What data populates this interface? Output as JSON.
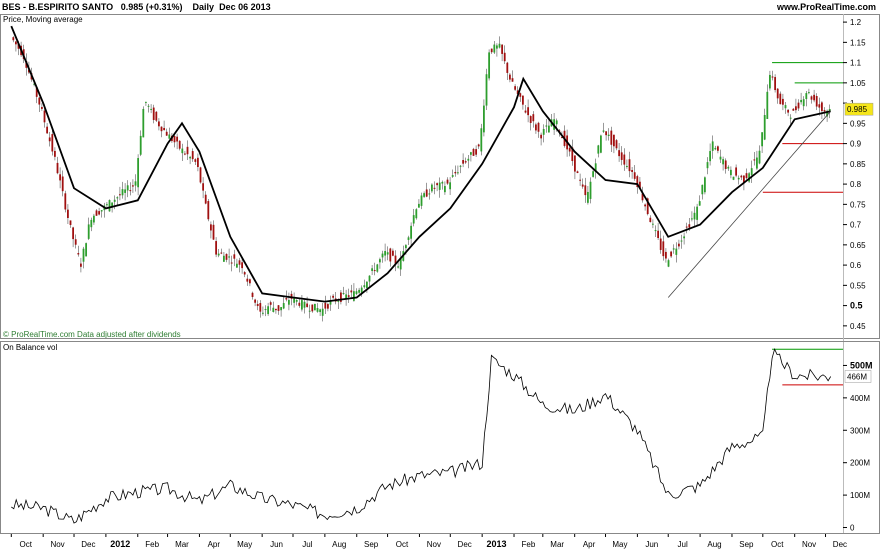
{
  "header": {
    "symbol": "BES - B.ESPIRITO SANTO",
    "price": "0.985",
    "change": "(+0.31%)",
    "period": "Daily",
    "date": "Dec 06 2013",
    "site": "www.ProRealTime.com"
  },
  "price_panel": {
    "label": "Price, Moving average",
    "note": "© ProRealTime.com  Data adjusted after dividends",
    "last_tag": "0.985",
    "colors": {
      "line": "#000000",
      "up": "#2e9e2e",
      "down": "#a01010",
      "support": "#cc0000",
      "resistance": "#009900"
    }
  },
  "obv_panel": {
    "label": "On Balance vol",
    "last_tag": "466M"
  },
  "chart_data": [
    {
      "type": "line",
      "title": "BES - B.ESPIRITO SANTO",
      "series": [
        {
          "name": "Price",
          "x": [
            "2011-10-01",
            "2011-10-15",
            "2011-11-01",
            "2011-11-15",
            "2011-12-01",
            "2011-12-10",
            "2011-12-20",
            "2012-01-01",
            "2012-01-15",
            "2012-02-01",
            "2012-02-10",
            "2012-02-20",
            "2012-03-01",
            "2012-03-15",
            "2012-04-01",
            "2012-04-10",
            "2012-04-20",
            "2012-05-01",
            "2012-05-15",
            "2012-06-01",
            "2012-06-10",
            "2012-06-20",
            "2012-07-01",
            "2012-07-15",
            "2012-08-01",
            "2012-08-10",
            "2012-08-20",
            "2012-09-01",
            "2012-09-15",
            "2012-10-01",
            "2012-10-15",
            "2012-11-01",
            "2012-11-15",
            "2012-12-01",
            "2012-12-15",
            "2013-01-01",
            "2013-01-10",
            "2013-01-20",
            "2013-02-01",
            "2013-02-15",
            "2013-03-01",
            "2013-03-15",
            "2013-04-01",
            "2013-04-15",
            "2013-05-01",
            "2013-05-15",
            "2013-06-01",
            "2013-06-15",
            "2013-07-01",
            "2013-07-15",
            "2013-08-01",
            "2013-08-15",
            "2013-09-01",
            "2013-09-15",
            "2013-10-01",
            "2013-10-10",
            "2013-10-20",
            "2013-11-01",
            "2013-11-15",
            "2013-12-01",
            "2013-12-06"
          ],
          "y": [
            1.17,
            1.12,
            0.99,
            0.86,
            0.68,
            0.6,
            0.72,
            0.74,
            0.77,
            0.8,
            1.01,
            0.96,
            0.93,
            0.89,
            0.85,
            0.74,
            0.63,
            0.62,
            0.6,
            0.48,
            0.5,
            0.49,
            0.52,
            0.5,
            0.49,
            0.51,
            0.52,
            0.53,
            0.57,
            0.63,
            0.6,
            0.75,
            0.79,
            0.8,
            0.85,
            0.89,
            1.13,
            1.14,
            1.05,
            0.98,
            0.92,
            0.96,
            0.86,
            0.76,
            0.94,
            0.88,
            0.82,
            0.72,
            0.61,
            0.66,
            0.74,
            0.9,
            0.83,
            0.81,
            0.88,
            1.08,
            1.0,
            0.97,
            1.03,
            0.98,
            0.985
          ]
        },
        {
          "name": "Moving average",
          "x": [
            "2011-10-01",
            "2011-11-01",
            "2011-12-01",
            "2012-01-01",
            "2012-02-01",
            "2012-03-01",
            "2012-03-15",
            "2012-04-01",
            "2012-05-01",
            "2012-06-01",
            "2012-07-01",
            "2012-08-01",
            "2012-09-01",
            "2012-10-01",
            "2012-11-01",
            "2012-12-01",
            "2013-01-01",
            "2013-02-01",
            "2013-02-10",
            "2013-03-01",
            "2013-04-01",
            "2013-05-01",
            "2013-06-01",
            "2013-07-01",
            "2013-08-01",
            "2013-09-01",
            "2013-10-01",
            "2013-11-01",
            "2013-12-06"
          ],
          "y": [
            1.19,
            1.0,
            0.79,
            0.74,
            0.76,
            0.9,
            0.95,
            0.88,
            0.67,
            0.53,
            0.52,
            0.51,
            0.52,
            0.58,
            0.67,
            0.74,
            0.85,
            0.99,
            1.06,
            0.98,
            0.88,
            0.81,
            0.8,
            0.67,
            0.7,
            0.78,
            0.84,
            0.96,
            0.98
          ]
        }
      ],
      "ylim": [
        0.42,
        1.22
      ],
      "yticks": [
        0.45,
        0.5,
        0.55,
        0.6,
        0.65,
        0.7,
        0.75,
        0.8,
        0.85,
        0.9,
        0.95,
        1,
        1.05,
        1.1,
        1.15,
        1.2
      ],
      "ytick_labels": [
        "0.45",
        "0.5",
        "0.55",
        "0.6",
        "0.65",
        "0.7",
        "0.75",
        "0.8",
        "0.85",
        "0.9",
        "0.95",
        "1",
        "1.05",
        "1.1",
        "1.15",
        "1.2"
      ],
      "x_tick_labels": [
        "Oct",
        "Nov",
        "Dec",
        "2012",
        "Feb",
        "Mar",
        "Apr",
        "May",
        "Jun",
        "Jul",
        "Aug",
        "Sep",
        "Oct",
        "Nov",
        "Dec",
        "2013",
        "Feb",
        "Mar",
        "Apr",
        "May",
        "Jun",
        "Jul",
        "Aug",
        "Sep",
        "Oct",
        "Nov",
        "Dec"
      ],
      "levels": {
        "resistance": [
          {
            "y": 1.1,
            "from": "2013-10-10",
            "to": "2013-12-06"
          },
          {
            "y": 1.05,
            "from": "2013-11-01",
            "to": "2013-12-06"
          }
        ],
        "support": [
          {
            "y": 0.9,
            "from": "2013-10-20",
            "to": "2013-12-06"
          },
          {
            "y": 0.78,
            "from": "2013-10-01",
            "to": "2013-12-06"
          }
        ],
        "trendline": [
          {
            "x": "2013-07-01",
            "y": 0.52
          },
          {
            "x": "2013-12-06",
            "y": 0.98
          }
        ]
      },
      "grid": false,
      "axis_side": "right"
    },
    {
      "type": "line",
      "title": "On Balance vol",
      "series": [
        {
          "name": "On Balance vol",
          "x": [
            "2011-10-01",
            "2011-11-01",
            "2011-12-01",
            "2012-01-01",
            "2012-02-01",
            "2012-03-01",
            "2012-04-01",
            "2012-05-01",
            "2012-06-01",
            "2012-07-01",
            "2012-08-01",
            "2012-09-01",
            "2012-10-01",
            "2012-11-01",
            "2012-12-01",
            "2013-01-01",
            "2013-01-10",
            "2013-02-01",
            "2013-03-01",
            "2013-04-01",
            "2013-05-01",
            "2013-06-01",
            "2013-07-01",
            "2013-08-01",
            "2013-09-01",
            "2013-10-01",
            "2013-10-10",
            "2013-11-01",
            "2013-12-06"
          ],
          "y": [
            70,
            60,
            20,
            90,
            110,
            120,
            80,
            130,
            90,
            70,
            40,
            60,
            130,
            160,
            170,
            200,
            520,
            470,
            380,
            360,
            410,
            300,
            100,
            130,
            250,
            280,
            540,
            470,
            466
          ]
        }
      ],
      "ylim": [
        -20,
        560
      ],
      "yticks": [
        0,
        100,
        200,
        300,
        400,
        500
      ],
      "ytick_labels": [
        "0",
        "100M",
        "200M",
        "300M",
        "400M",
        "500M"
      ],
      "levels": {
        "resistance": [
          {
            "y": 550,
            "from": "2013-10-10",
            "to": "2013-12-06"
          }
        ],
        "support": [
          {
            "y": 440,
            "from": "2013-10-20",
            "to": "2013-12-06"
          }
        ]
      },
      "grid": false,
      "axis_side": "right"
    }
  ]
}
